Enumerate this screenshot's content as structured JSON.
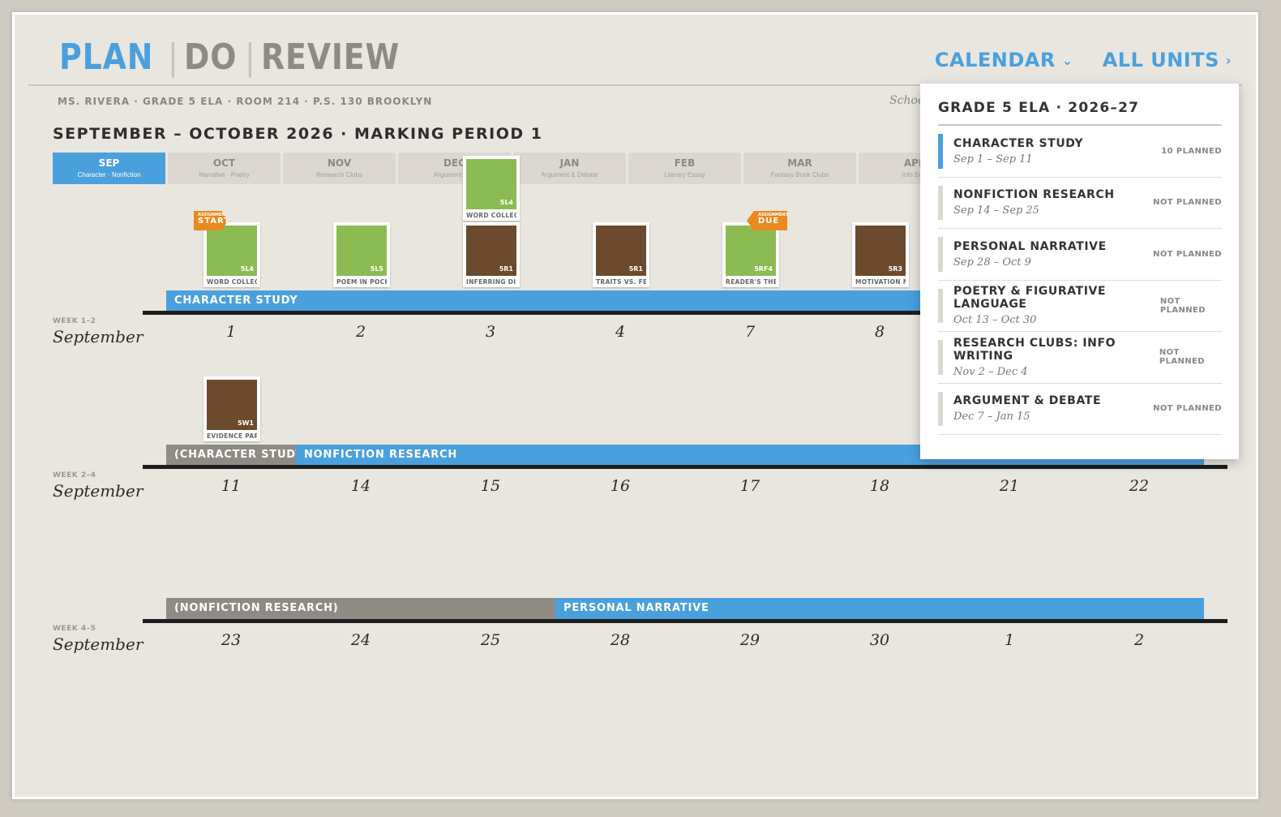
{
  "nav": {
    "plan": "PLAN",
    "do": "DO",
    "review": "REVIEW",
    "divider": "|",
    "calendar": "CALENDAR",
    "calendar_chevron": "⌄",
    "all_units": "ALL UNITS",
    "all_units_chevron": "›"
  },
  "meta": {
    "teacher_line": "MS. RIVERA · GRADE 5 ELA · ROOM 214 · P.S. 130 BROOKLYN",
    "school_year": "School Ye..."
  },
  "period_title": "SEPTEMBER – OCTOBER 2026 · MARKING PERIOD 1",
  "months": [
    {
      "name": "SEP",
      "sub": "Character · Nonfiction"
    },
    {
      "name": "OCT",
      "sub": "Narrative · Poetry"
    },
    {
      "name": "NOV",
      "sub": "Research Clubs"
    },
    {
      "name": "DEC",
      "sub": "Argument & ..."
    },
    {
      "name": "JAN",
      "sub": "Argument & Debate"
    },
    {
      "name": "FEB",
      "sub": "Literary Essay"
    },
    {
      "name": "MAR",
      "sub": "Fantasy Book Clubs"
    },
    {
      "name": "APR",
      "sub": "Info Bo..."
    }
  ],
  "cards": [
    {
      "code": "5L4",
      "label": "WORD COLLEC...",
      "color": "#8bbb52"
    },
    {
      "code": "5L5",
      "label": "POEM IN POCK...",
      "color": "#8bbb52"
    },
    {
      "code": "5R1",
      "label": "INFERRING DI...",
      "color": "#6b4a2d"
    },
    {
      "code": "5R1",
      "label": "TRAITS VS. FE...",
      "color": "#6b4a2d"
    },
    {
      "code": "5RF4",
      "label": "READER'S THE...",
      "color": "#8bbb52"
    },
    {
      "code": "5R3",
      "label": "MOTIVATION M...",
      "color": "#6b4a2d"
    },
    {
      "code": "5L4",
      "label": "WORD COLLEC...",
      "color": "#8bbb52"
    },
    {
      "code": "5W1",
      "label": "EVIDENCE PAR...",
      "color": "#6b4a2d"
    }
  ],
  "flags": {
    "start_small": "ASSIGNMENT",
    "start": "START",
    "due_small": "ASSIGNMENT",
    "due": "DUE"
  },
  "weeks": [
    {
      "label": "WEEK 1–2",
      "month": "September",
      "days": [
        "1",
        "2",
        "3",
        "4",
        "7",
        "8"
      ],
      "bars": [
        "CHARACTER STUDY"
      ]
    },
    {
      "label": "WEEK 2–4",
      "month": "September",
      "days": [
        "11",
        "14",
        "15",
        "16",
        "17",
        "18",
        "21",
        "22"
      ],
      "bars": [
        "(CHARACTER STUDY)",
        "NONFICTION RESEARCH"
      ]
    },
    {
      "label": "WEEK 4–5",
      "month": "September",
      "days": [
        "23",
        "24",
        "25",
        "28",
        "29",
        "30",
        "1",
        "2"
      ],
      "bars": [
        "(NONFICTION RESEARCH)",
        "PERSONAL NARRATIVE"
      ]
    }
  ],
  "dropdown": {
    "title": "GRADE 5 ELA · 2026–27",
    "items": [
      {
        "name": "CHARACTER STUDY",
        "dates": "Sep 1 – Sep 11",
        "status": "10 PLANNED"
      },
      {
        "name": "NONFICTION RESEARCH",
        "dates": "Sep 14 – Sep 25",
        "status": "NOT PLANNED"
      },
      {
        "name": "PERSONAL NARRATIVE",
        "dates": "Sep 28 – Oct 9",
        "status": "NOT PLANNED"
      },
      {
        "name": "POETRY & FIGURATIVE LANGUAGE",
        "dates": "Oct 13 – Oct 30",
        "status": "NOT PLANNED"
      },
      {
        "name": "RESEARCH CLUBS: INFO WRITING",
        "dates": "Nov 2 – Dec 4",
        "status": "NOT PLANNED"
      },
      {
        "name": "ARGUMENT & DEBATE",
        "dates": "Dec 7 – Jan 15",
        "status": "NOT PLANNED"
      }
    ]
  },
  "colors": {
    "accent": "#4aa0dd",
    "orange": "#e98a1f",
    "green": "#8bbb52",
    "brown": "#6b4a2d",
    "gray_bar": "#8e8b85"
  }
}
